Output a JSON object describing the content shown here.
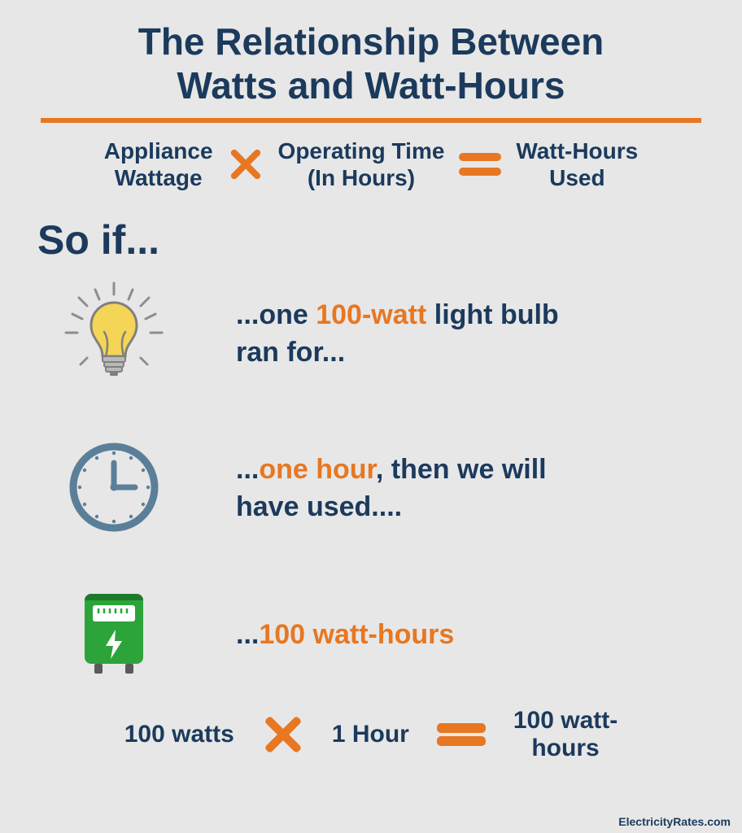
{
  "title": "The Relationship Between\nWatts and Watt-Hours",
  "colors": {
    "text_primary": "#1b3a5c",
    "accent": "#e87722",
    "background": "#e7e7e7",
    "bulb_fill": "#f5d556",
    "bulb_rays": "#8e8e8e",
    "bulb_outline": "#808080",
    "bulb_base": "#b9b9b9",
    "clock_stroke": "#5b7f99",
    "meter_green": "#2ca43a",
    "meter_dark": "#1e7a28",
    "meter_white": "#ffffff"
  },
  "formula_top": {
    "term1": "Appliance\nWattage",
    "term2": "Operating Time\n(In Hours)",
    "term3": "Watt-Hours\nUsed"
  },
  "soif": "So if...",
  "examples": [
    {
      "icon": "bulb",
      "pre": "...one ",
      "accent": "100-watt",
      "post": " light bulb\nran for..."
    },
    {
      "icon": "clock",
      "pre": "...",
      "accent": "one hour",
      "post": ", then we will\nhave used...."
    },
    {
      "icon": "meter",
      "pre": "...",
      "accent": "100 watt-hours",
      "post": ""
    }
  ],
  "formula_bottom": {
    "term1": "100 watts",
    "term2": "1 Hour",
    "term3": "100 watt-\nhours"
  },
  "credit": "ElectricityRates.com"
}
